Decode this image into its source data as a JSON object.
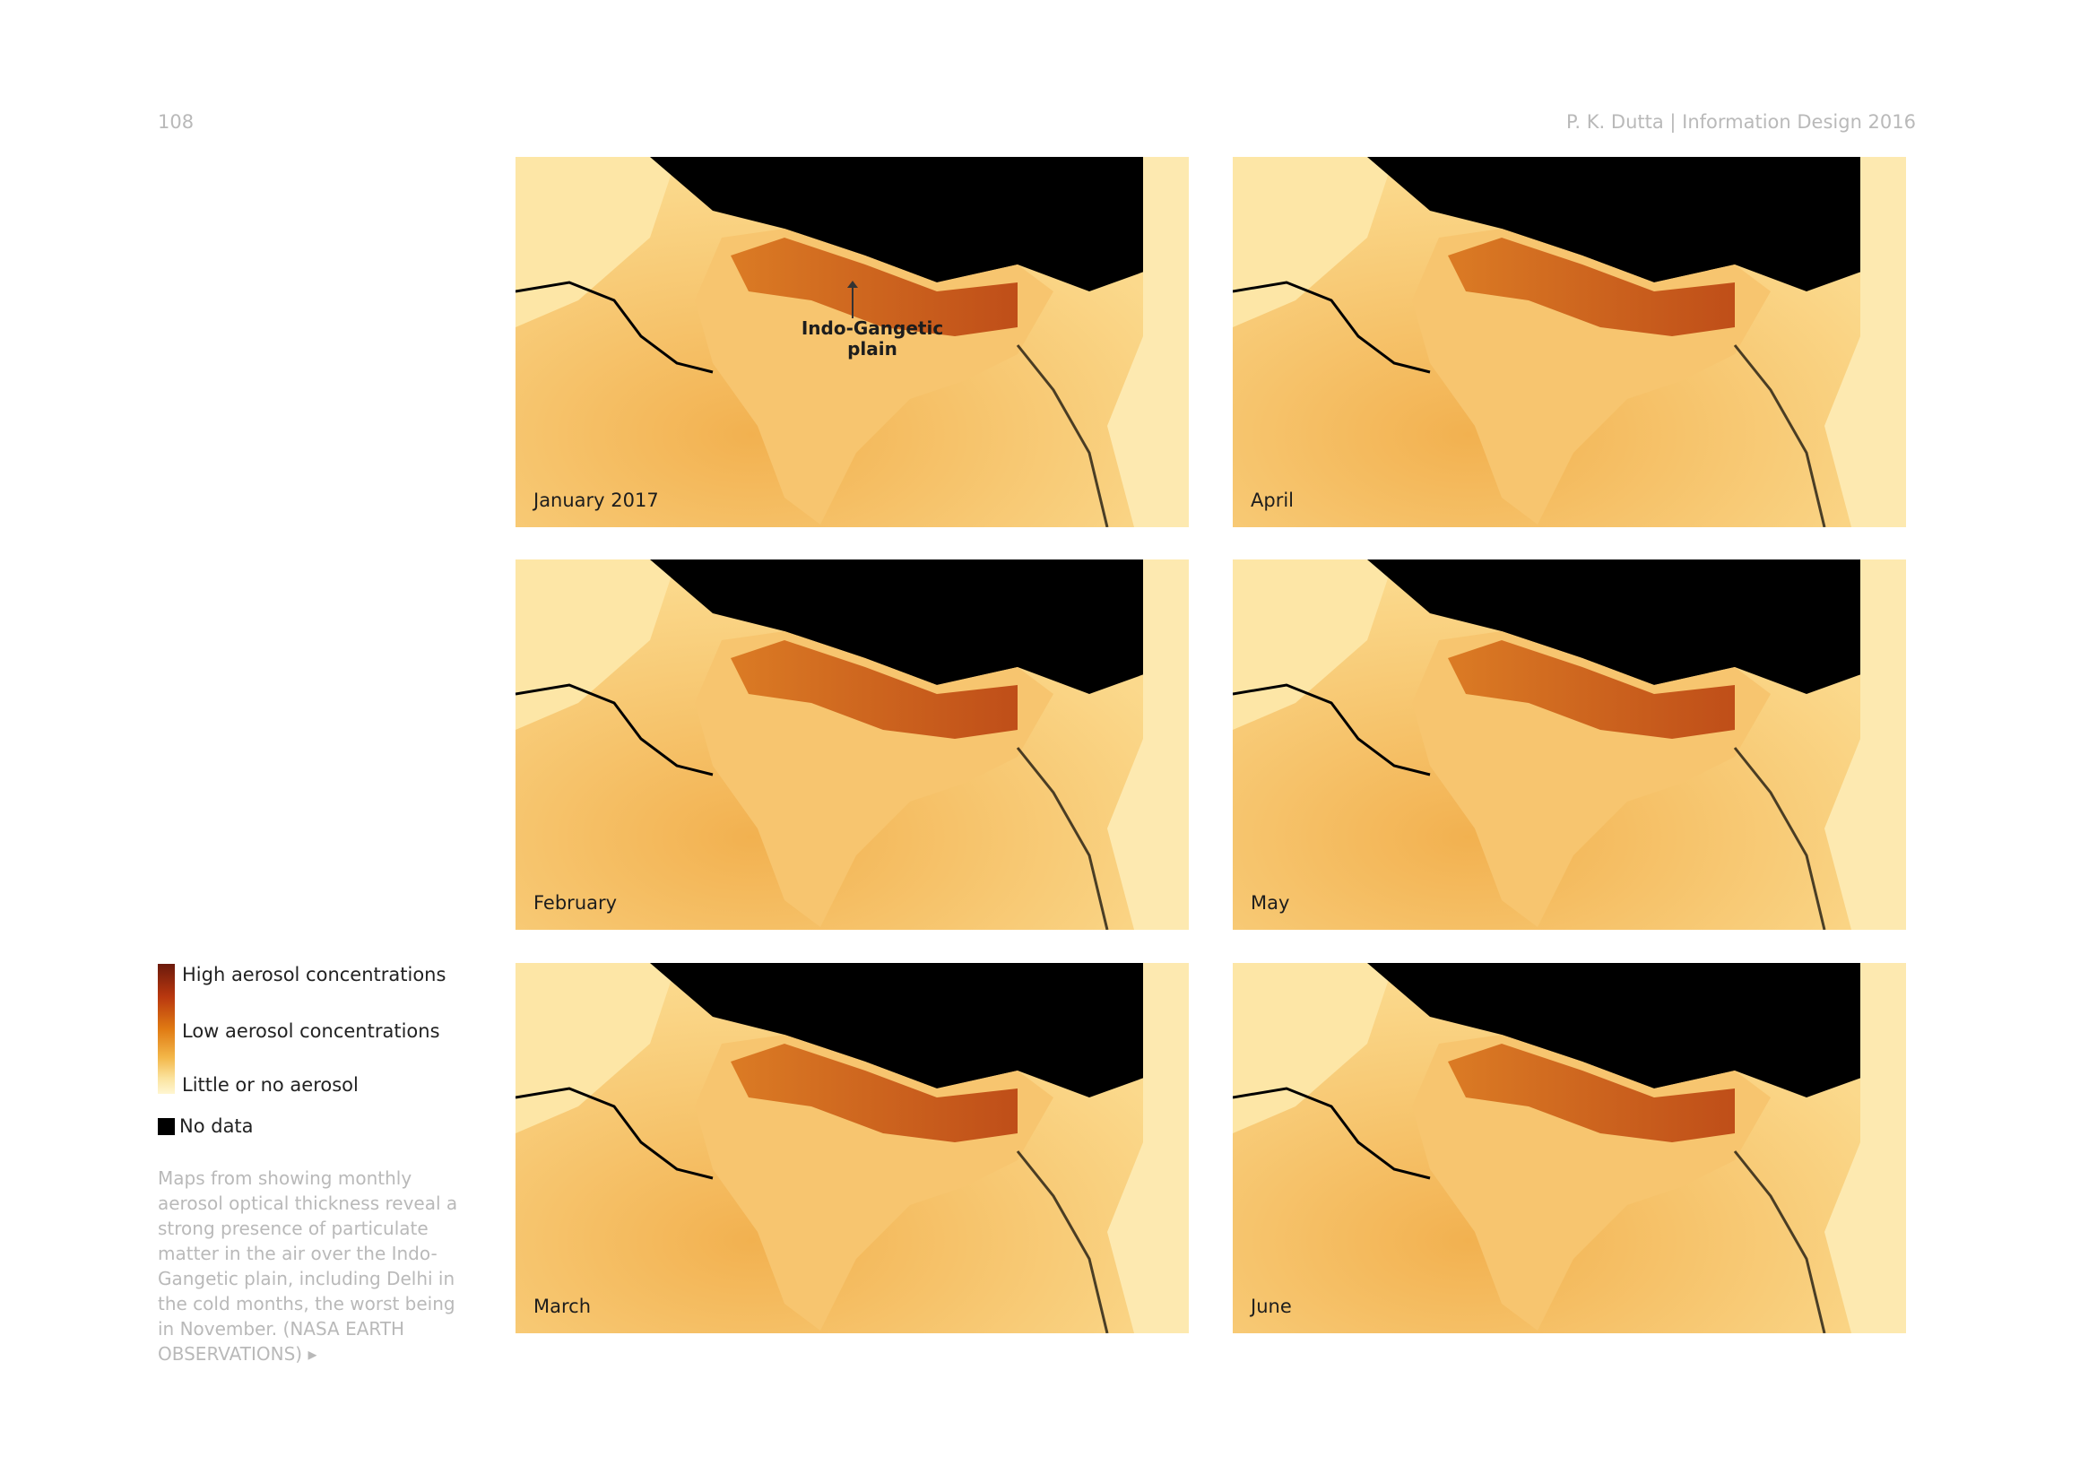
{
  "header": {
    "page_number": "108",
    "running_title": "P. K. Dutta | Information Design 2016"
  },
  "legend": {
    "high": "High aerosol concentrations",
    "low": "Low aerosol concentrations",
    "none": "Little or no aerosol",
    "no_data": "No data",
    "colors": [
      "#6b1a0c",
      "#b8370f",
      "#e07a13",
      "#f3b749",
      "#fbe39e",
      "#fff6d2",
      "#000000"
    ]
  },
  "caption": "Maps from showing monthly aerosol optical thickness reveal a strong presence of particulate matter in the air over the Indo-Gangetic plain, including Delhi in the cold months, the worst being in November. (NASA EARTH OBSERVATIONS) ▸",
  "maps": [
    {
      "label": "January 2017",
      "annotation": "Indo-Gangetic plain"
    },
    {
      "label": "April"
    },
    {
      "label": "February"
    },
    {
      "label": "May"
    },
    {
      "label": "March"
    },
    {
      "label": "June"
    }
  ]
}
